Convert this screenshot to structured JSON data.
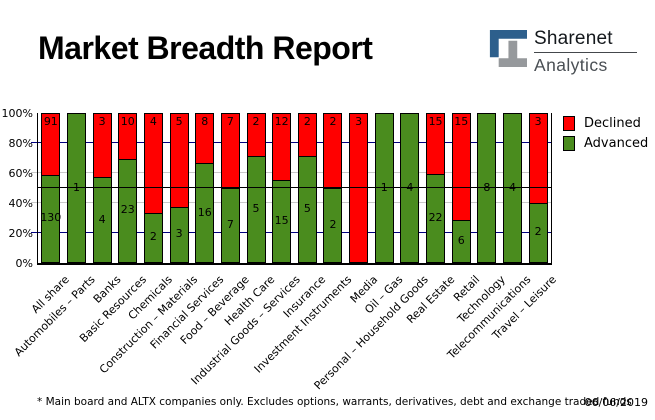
{
  "header": {
    "title": "Market Breadth Report",
    "logo": {
      "brand": "Sharenet",
      "sub": "Analytics"
    }
  },
  "chart_data": {
    "type": "bar",
    "stacked": true,
    "orientation": "vertical",
    "title": "Market Breadth Report",
    "xlabel": "",
    "ylabel": "",
    "ylim": [
      0,
      100
    ],
    "yticks": [
      "0%",
      "20%",
      "40%",
      "60%",
      "80%",
      "100%"
    ],
    "grid": "on",
    "midline_percent": 50,
    "legend_position": "right",
    "categories": [
      "All share",
      "Automobiles – Parts",
      "Banks",
      "Basic Resources",
      "Chemicals",
      "Construction – Materials",
      "Financial Services",
      "Food – Beverage",
      "Health Care",
      "Industrial Goods – Services",
      "Insurance",
      "Investment Instruments",
      "Media",
      "Oil – Gas",
      "Personal – Household Goods",
      "Real Estate",
      "Retail",
      "Technology",
      "Telecommunications",
      "Travel – Leisure"
    ],
    "series": [
      {
        "name": "Declined",
        "color": "#ff0000",
        "values": [
          91,
          0,
          3,
          10,
          4,
          5,
          8,
          7,
          2,
          12,
          2,
          2,
          3,
          0,
          0,
          15,
          15,
          0,
          0,
          3
        ]
      },
      {
        "name": "Advanced",
        "color": "#4a8c1e",
        "values": [
          130,
          1,
          4,
          23,
          2,
          3,
          16,
          7,
          5,
          15,
          5,
          2,
          0,
          1,
          4,
          22,
          6,
          8,
          4,
          2
        ]
      }
    ]
  },
  "colors": {
    "declined": "#ff0000",
    "advanced": "#4a8c1e",
    "grid_major": "#000080",
    "grid_minor": "#c9c9c9",
    "midline": "#000000",
    "logo_blue": "#2d5f8c",
    "logo_gray": "#96999c"
  },
  "footnote": {
    "text": "* Main board and ALTX companies only. Excludes options, warrants, derivatives, debt and exchange traded funds",
    "date": "06/06/2019"
  }
}
